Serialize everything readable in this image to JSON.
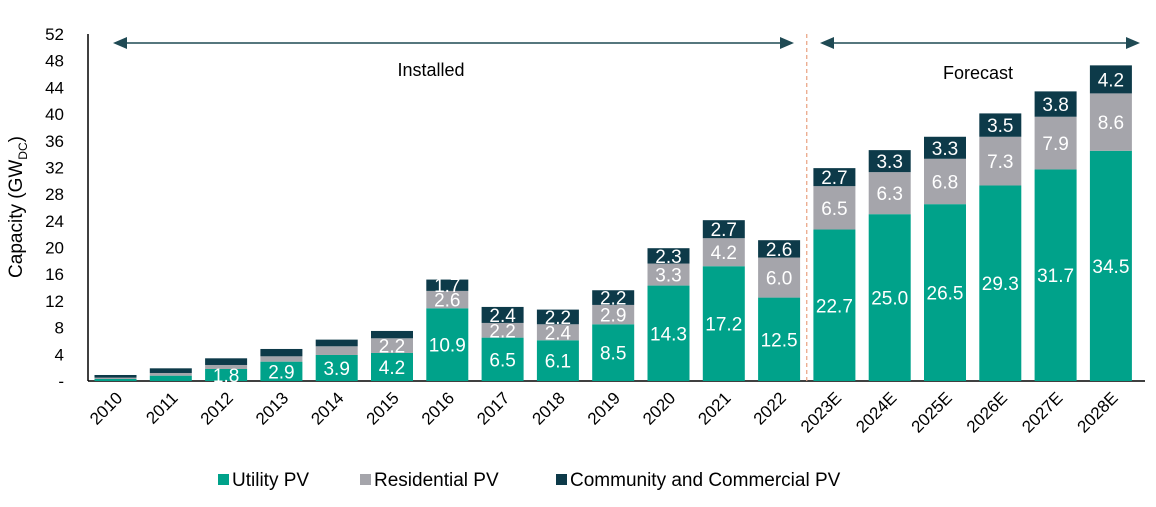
{
  "chart_data": {
    "type": "bar",
    "stacked": true,
    "ylabel": "Capacity (GW",
    "ylabel_sub": "DC",
    "ylabel_close": ")",
    "ylim": [
      0,
      52
    ],
    "ytick_values": [
      0,
      4,
      8,
      12,
      16,
      20,
      24,
      28,
      32,
      36,
      40,
      44,
      48,
      52
    ],
    "ytick_labels": [
      "-",
      "4",
      "8",
      "12",
      "16",
      "20",
      "24",
      "28",
      "32",
      "36",
      "40",
      "44",
      "48",
      "52"
    ],
    "categories": [
      "2010",
      "2011",
      "2012",
      "2013",
      "2014",
      "2015",
      "2016",
      "2017",
      "2018",
      "2019",
      "2020",
      "2021",
      "2022",
      "2023E",
      "2024E",
      "2025E",
      "2026E",
      "2027E",
      "2028E"
    ],
    "series": [
      {
        "name": "Utility PV",
        "color": "#00a28a",
        "values": [
          0.3,
          0.8,
          1.8,
          2.9,
          3.9,
          4.2,
          10.9,
          6.5,
          6.1,
          8.5,
          14.3,
          17.2,
          12.5,
          22.7,
          25.0,
          26.5,
          29.3,
          31.7,
          34.5
        ],
        "labels": [
          "",
          "",
          "1.8",
          "2.9",
          "3.9",
          "4.2",
          "10.9",
          "6.5",
          "6.1",
          "8.5",
          "14.3",
          "17.2",
          "12.5",
          "22.7",
          "25.0",
          "26.5",
          "29.3",
          "31.7",
          "34.5"
        ]
      },
      {
        "name": "Residential PV",
        "color": "#a5a5ab",
        "values": [
          0.2,
          0.4,
          0.6,
          0.8,
          1.3,
          2.2,
          2.6,
          2.2,
          2.4,
          2.9,
          3.3,
          4.2,
          6.0,
          6.5,
          6.3,
          6.8,
          7.3,
          7.9,
          8.6
        ],
        "labels": [
          "",
          "",
          "",
          "",
          "",
          "2.2",
          "2.6",
          "2.2",
          "2.4",
          "2.9",
          "3.3",
          "4.2",
          "6.0",
          "6.5",
          "6.3",
          "6.8",
          "7.3",
          "7.9",
          "8.6"
        ]
      },
      {
        "name": "Community and Commercial PV",
        "color": "#0d3a49",
        "values": [
          0.4,
          0.7,
          1.0,
          1.1,
          1.0,
          1.1,
          1.7,
          2.4,
          2.2,
          2.2,
          2.3,
          2.7,
          2.6,
          2.7,
          3.3,
          3.3,
          3.5,
          3.8,
          4.2
        ],
        "labels": [
          "",
          "",
          "",
          "",
          "",
          "",
          "1.7",
          "2.4",
          "2.2",
          "2.2",
          "2.3",
          "2.7",
          "2.6",
          "2.7",
          "3.3",
          "3.3",
          "3.5",
          "3.8",
          "4.2"
        ]
      }
    ],
    "annotations": {
      "installed": "Installed",
      "forecast": "Forecast"
    },
    "divider_color": "#e8a080",
    "arrow_color": "#1f4a54",
    "legend_placement": "bottom",
    "grid": false
  }
}
